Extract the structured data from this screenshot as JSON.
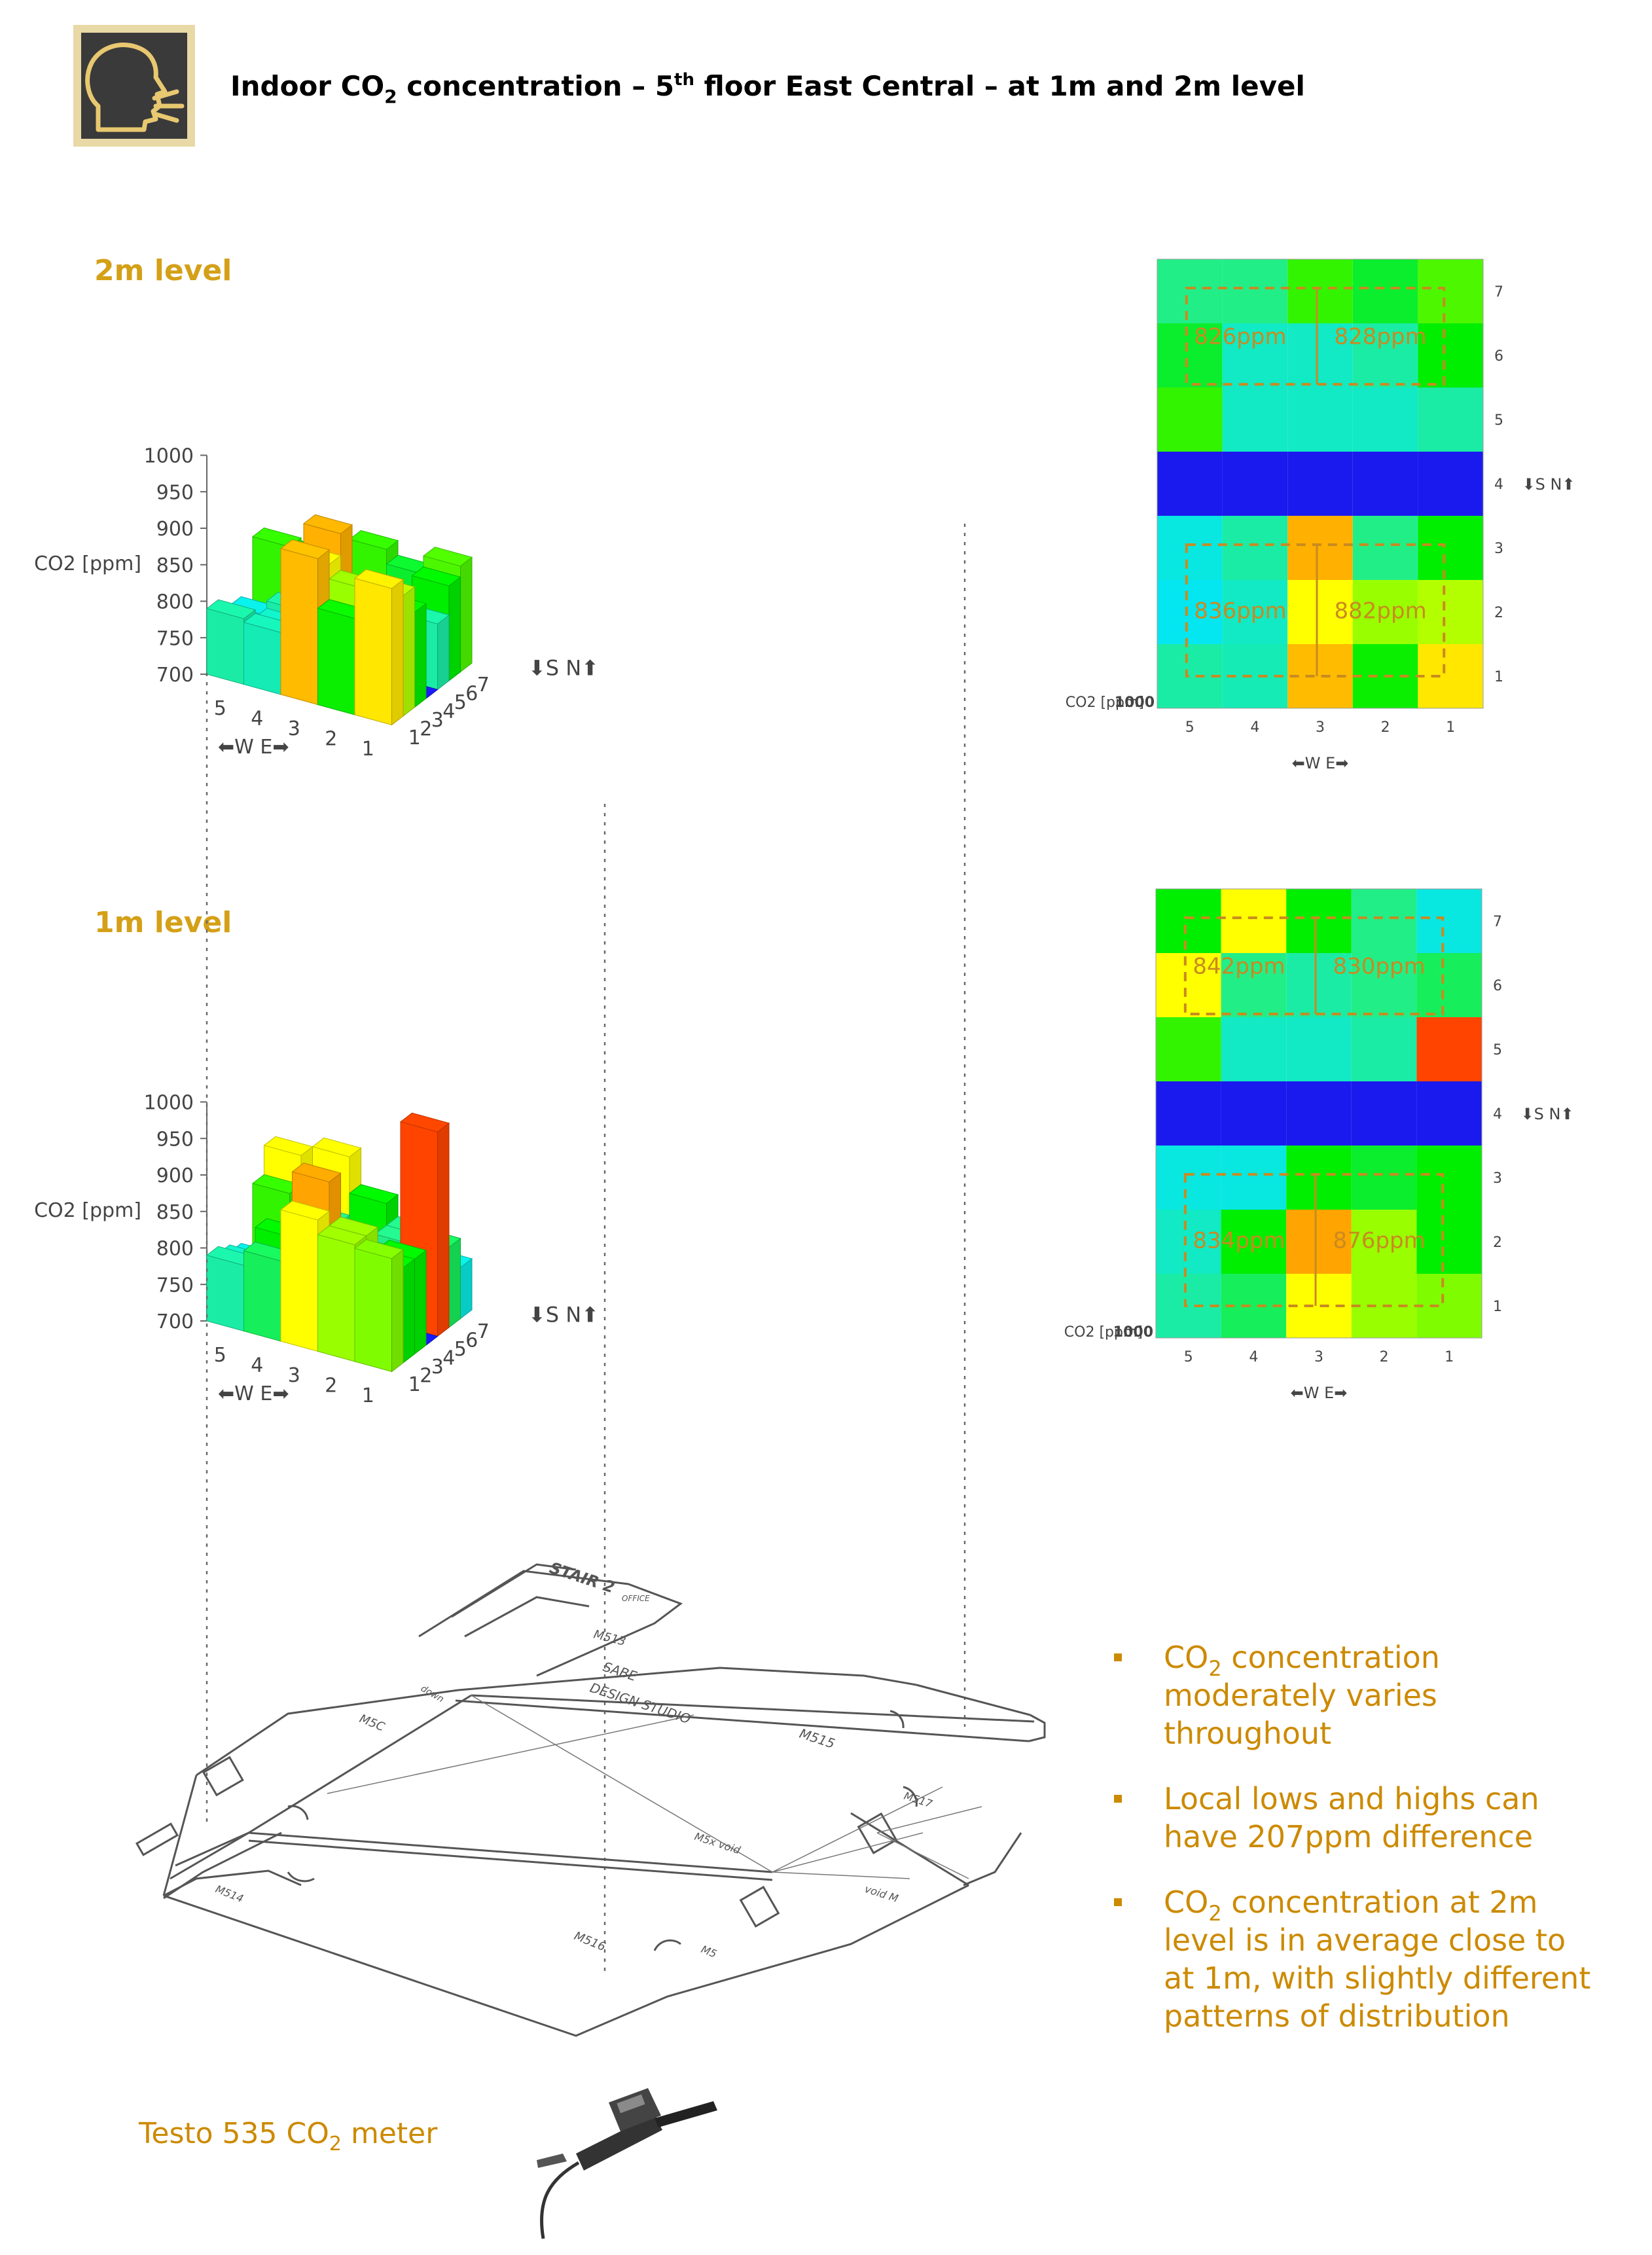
{
  "header": {
    "title_parts": [
      "Indoor CO",
      "2",
      " concentration – 5",
      "th",
      " floor East Central – at 1m and 2m level"
    ]
  },
  "colors": {
    "accent": "#d4a017",
    "bullet": "#cc8a00",
    "icon_bg": "#3a3a3a",
    "icon_frame": "#e8d9a6"
  },
  "icons": {
    "header": "speaking-head-icon",
    "meter": "co2-meter-icon"
  },
  "color_scale": [
    {
      "v": 700,
      "c": "#1a1aee"
    },
    {
      "v": 760,
      "c": "#00e5ff"
    },
    {
      "v": 800,
      "c": "#22ee88"
    },
    {
      "v": 830,
      "c": "#00ee00"
    },
    {
      "v": 860,
      "c": "#99ff00"
    },
    {
      "v": 880,
      "c": "#ffff00"
    },
    {
      "v": 900,
      "c": "#ffbb00"
    },
    {
      "v": 930,
      "c": "#ff9900"
    },
    {
      "v": 970,
      "c": "#ff4400"
    }
  ],
  "chart_data": [
    {
      "type": "bar3d",
      "level_label": "2m level",
      "ylabel": "CO2 [ppm]",
      "ylim": [
        700,
        1000
      ],
      "yticks": [
        700,
        750,
        800,
        850,
        900,
        950,
        1000
      ],
      "x_labels": [
        "5",
        "4",
        "3",
        "2",
        "1"
      ],
      "x_direction": "⬅W  E➡",
      "y_labels": [
        "1",
        "2",
        "3",
        "4",
        "5",
        "6",
        "7"
      ],
      "y_direction": "⬇S  N⬆",
      "rows": [
        {
          "row": "7",
          "values": [
            800,
            800,
            840,
            820,
            845
          ]
        },
        {
          "row": "6",
          "values": [
            820,
            780,
            780,
            790,
            830
          ]
        },
        {
          "row": "5",
          "values": [
            840,
            780,
            780,
            780,
            790
          ]
        },
        {
          "row": "4",
          "values": [
            700,
            700,
            700,
            700,
            700
          ]
        },
        {
          "row": "3",
          "values": [
            770,
            790,
            910,
            800,
            830
          ]
        },
        {
          "row": "2",
          "values": [
            765,
            780,
            880,
            860,
            865
          ]
        },
        {
          "row": "1",
          "values": [
            790,
            785,
            900,
            832,
            887
          ]
        }
      ]
    },
    {
      "type": "bar3d",
      "level_label": "1m level",
      "ylabel": "CO2 [ppm]",
      "ylim": [
        700,
        1000
      ],
      "yticks": [
        700,
        750,
        800,
        850,
        900,
        950,
        1000
      ],
      "x_labels": [
        "5",
        "4",
        "3",
        "2",
        "1"
      ],
      "x_direction": "⬅W  E➡",
      "y_labels": [
        "1",
        "2",
        "3",
        "4",
        "5",
        "6",
        "7"
      ],
      "y_direction": "⬇S  N⬆",
      "rows": [
        {
          "row": "7",
          "values": [
            830,
            880,
            830,
            800,
            770
          ]
        },
        {
          "row": "6",
          "values": [
            880,
            800,
            790,
            800,
            810
          ]
        },
        {
          "row": "5",
          "values": [
            840,
            780,
            780,
            790,
            980
          ]
        },
        {
          "row": "4",
          "values": [
            700,
            700,
            700,
            700,
            700
          ]
        },
        {
          "row": "3",
          "values": [
            770,
            770,
            830,
            820,
            830
          ]
        },
        {
          "row": "2",
          "values": [
            780,
            830,
            920,
            860,
            830
          ]
        },
        {
          "row": "1",
          "values": [
            790,
            810,
            880,
            860,
            855
          ]
        }
      ]
    },
    {
      "type": "heatmap",
      "legend_label": "CO2 [ppm]",
      "legend_value": "1000",
      "x_labels": [
        "5",
        "4",
        "3",
        "2",
        "1"
      ],
      "x_direction": "⬅W  E➡",
      "y_labels": [
        "7",
        "6",
        "5",
        "4",
        "3",
        "2",
        "1"
      ],
      "y_direction": "⬇S  N⬆",
      "zones": [
        {
          "label": "826ppm",
          "area": "north-west"
        },
        {
          "label": "828ppm",
          "area": "north-east"
        },
        {
          "label": "836ppm",
          "area": "south-west"
        },
        {
          "label": "882ppm",
          "area": "south-east"
        }
      ]
    },
    {
      "type": "heatmap",
      "legend_label": "CO2 [ppm]",
      "legend_value": "1000",
      "x_labels": [
        "5",
        "4",
        "3",
        "2",
        "1"
      ],
      "x_direction": "⬅W  E➡",
      "y_labels": [
        "7",
        "6",
        "5",
        "4",
        "3",
        "2",
        "1"
      ],
      "y_direction": "⬇S  N⬆",
      "zones": [
        {
          "label": "842ppm",
          "area": "north-west"
        },
        {
          "label": "830ppm",
          "area": "north-east"
        },
        {
          "label": "834ppm",
          "area": "south-west"
        },
        {
          "label": "876ppm",
          "area": "south-east"
        }
      ]
    }
  ],
  "floor_plan": {
    "labels": [
      "STAIR 2",
      "OFFICE",
      "M513",
      "down",
      "M5C",
      "SABE",
      "DESIGN STUDIO",
      "M515",
      "M517",
      "M5x  void",
      "void  M",
      "M516",
      "M514",
      "M5"
    ]
  },
  "bullets": [
    [
      "CO",
      "2",
      " concentration",
      "moderately  varies",
      "throughout"
    ],
    [
      "Local lows and highs can",
      "have 207ppm difference"
    ],
    [
      "CO",
      "2",
      " concentration at 2m",
      "level is in average close to",
      "at 1m, with slightly different",
      "patterns of distribution"
    ]
  ],
  "footer": {
    "meter_caption_parts": [
      "Testo 535 CO",
      "2",
      " meter"
    ]
  }
}
